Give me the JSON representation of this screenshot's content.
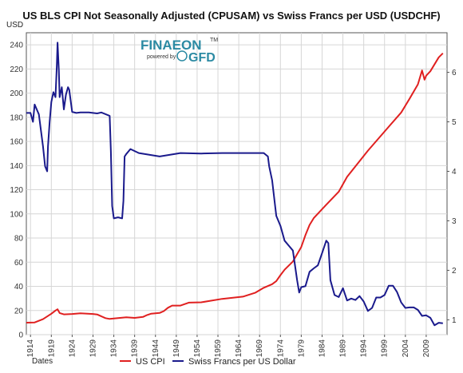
{
  "chart_data": {
    "type": "line",
    "title": "US BLS CPI Not Seasonally Adjusted (CPUSAM) vs Swiss Francs per USD (USDCHF)",
    "left_axis_unit": "USD",
    "xlabel": "Dates",
    "x_ticks": [
      "1914",
      "1919",
      "1924",
      "1929",
      "1934",
      "1939",
      "1944",
      "1949",
      "1954",
      "1959",
      "1964",
      "1969",
      "1974",
      "1979",
      "1984",
      "1989",
      "1994",
      "1999",
      "2004",
      "2009"
    ],
    "xlim": [
      1913,
      2014
    ],
    "y_left": {
      "lim": [
        0,
        250
      ],
      "ticks": [
        0,
        20,
        40,
        60,
        80,
        100,
        120,
        140,
        160,
        180,
        200,
        220,
        240
      ]
    },
    "y_right": {
      "lim": [
        0.7,
        6.8
      ],
      "ticks": [
        1,
        2,
        3,
        4,
        5,
        6
      ]
    },
    "grid": true,
    "legend_position": "bottom",
    "series": [
      {
        "name": "US CPI",
        "axis": "left",
        "color": "#e02020",
        "x": [
          1913,
          1915,
          1917,
          1918,
          1919,
          1920,
          1920.5,
          1921,
          1922,
          1924,
          1926,
          1929,
          1930,
          1932,
          1933,
          1935,
          1937,
          1939,
          1941,
          1942,
          1943,
          1945,
          1946,
          1947,
          1948,
          1950,
          1952,
          1955,
          1960,
          1965,
          1968,
          1970,
          1972,
          1973,
          1974,
          1975,
          1977,
          1979,
          1980,
          1981,
          1982,
          1985,
          1988,
          1990,
          1995,
          2000,
          2003,
          2005,
          2007,
          2008,
          2008.6,
          2009,
          2010,
          2012,
          2013
        ],
        "y": [
          9.9,
          10.1,
          12.8,
          15.1,
          17.3,
          20.0,
          21.0,
          17.9,
          16.8,
          17.1,
          17.7,
          17.1,
          16.7,
          13.7,
          13.0,
          13.7,
          14.4,
          13.9,
          14.7,
          16.3,
          17.4,
          18.0,
          19.5,
          22.3,
          24.1,
          24.1,
          26.5,
          26.8,
          29.6,
          31.5,
          34.8,
          38.8,
          41.8,
          44.4,
          49.3,
          53.8,
          60.6,
          72.6,
          82.4,
          90.9,
          96.5,
          107.6,
          118.3,
          130.7,
          152.4,
          172.2,
          184.0,
          195.3,
          207.3,
          218.8,
          211.1,
          214.5,
          218.1,
          229.6,
          233.0
        ]
      },
      {
        "name": "Swiss Francs per US Dollar",
        "axis": "right",
        "color": "#1a1a8c",
        "x": [
          1913,
          1914,
          1914.6,
          1915,
          1916,
          1917,
          1917.5,
          1918,
          1918.2,
          1918.6,
          1919,
          1919.5,
          1920,
          1920.3,
          1920.5,
          1920.8,
          1921,
          1921.5,
          1922,
          1922.5,
          1923,
          1923.3,
          1924,
          1925,
          1926,
          1928,
          1930,
          1931,
          1933,
          1933.3,
          1933.6,
          1934,
          1935,
          1936,
          1936.3,
          1936.6,
          1937,
          1938,
          1940,
          1945,
          1950,
          1955,
          1960,
          1965,
          1970,
          1971,
          1971.3,
          1972,
          1973,
          1974,
          1975,
          1976,
          1977,
          1978,
          1978.5,
          1979,
          1980,
          1981,
          1982,
          1983,
          1984,
          1985,
          1985.5,
          1986,
          1987,
          1988,
          1989,
          1990,
          1991,
          1992,
          1993,
          1994,
          1995,
          1996,
          1997,
          1998,
          1999,
          2000,
          2001,
          2002,
          2003,
          2004,
          2005,
          2006,
          2007,
          2008,
          2009,
          2010,
          2011,
          2012,
          2013
        ],
        "y": [
          5.18,
          5.18,
          5.0,
          5.35,
          5.15,
          4.5,
          4.1,
          4.0,
          4.5,
          5.0,
          5.4,
          5.6,
          5.5,
          6.1,
          6.6,
          6.05,
          5.5,
          5.7,
          5.25,
          5.55,
          5.7,
          5.65,
          5.2,
          5.18,
          5.19,
          5.19,
          5.17,
          5.19,
          5.12,
          4.4,
          3.3,
          3.05,
          3.07,
          3.05,
          3.4,
          4.3,
          4.35,
          4.45,
          4.37,
          4.3,
          4.37,
          4.36,
          4.37,
          4.37,
          4.37,
          4.3,
          4.1,
          3.82,
          3.1,
          2.9,
          2.6,
          2.5,
          2.4,
          1.8,
          1.55,
          1.66,
          1.68,
          1.97,
          2.04,
          2.1,
          2.35,
          2.6,
          2.55,
          1.8,
          1.5,
          1.46,
          1.64,
          1.39,
          1.43,
          1.4,
          1.48,
          1.37,
          1.18,
          1.24,
          1.45,
          1.45,
          1.5,
          1.69,
          1.69,
          1.56,
          1.35,
          1.24,
          1.25,
          1.25,
          1.2,
          1.08,
          1.09,
          1.04,
          0.89,
          0.94,
          0.93
        ]
      }
    ]
  },
  "logo": {
    "brand": "FINAEON",
    "powered_by": "powered by",
    "gfd": "GFD",
    "tm": "TM"
  }
}
